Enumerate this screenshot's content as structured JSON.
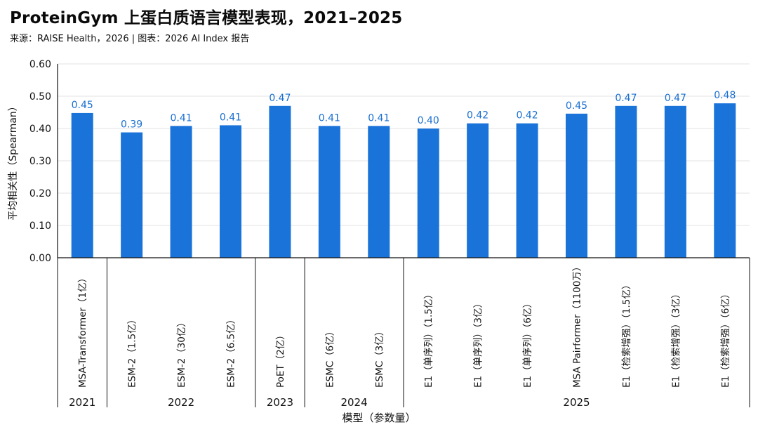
{
  "header": {
    "title": "ProteinGym 上蛋白质语言模型表现，2021–2025",
    "subtitle": "来源：RAISE Health，2026 | 图表：2026 AI Index 报告"
  },
  "chart_data": {
    "type": "bar",
    "title": "ProteinGym 上蛋白质语言模型表现，2021–2025",
    "xlabel": "模型（参数量）",
    "ylabel": "平均相关性（Spearman）",
    "ylim": [
      0,
      0.6
    ],
    "yticks": [
      "0.00",
      "0.10",
      "0.20",
      "0.30",
      "0.40",
      "0.50",
      "0.60"
    ],
    "grid": true,
    "bar_color": "#1a73d9",
    "label_color": "#1a6fd1",
    "categories": [
      "MSA-Transformer（1亿）",
      "ESM-2（1.5亿）",
      "ESM-2（30亿）",
      "ESM-2（6.5亿）",
      "PoET（2亿）",
      "ESMC（6亿）",
      "ESMC（3亿）",
      "E1（单序列）（1.5亿）",
      "E1（单序列）（3亿）",
      "E1（单序列）（6亿）",
      "MSA Pairformer（1100万）",
      "E1（检索增强）（1.5亿）",
      "E1（检索增强）（3亿）",
      "E1（检索增强）（6亿）"
    ],
    "values": [
      0.448,
      0.388,
      0.408,
      0.41,
      0.47,
      0.408,
      0.408,
      0.4,
      0.416,
      0.416,
      0.446,
      0.47,
      0.47,
      0.478
    ],
    "value_labels": [
      "0.45",
      "0.39",
      "0.41",
      "0.41",
      "0.47",
      "0.41",
      "0.41",
      "0.40",
      "0.42",
      "0.42",
      "0.45",
      "0.47",
      "0.47",
      "0.48"
    ],
    "year_groups": [
      {
        "label": "2021",
        "start": 0,
        "end": 0
      },
      {
        "label": "2022",
        "start": 1,
        "end": 3
      },
      {
        "label": "2023",
        "start": 4,
        "end": 4
      },
      {
        "label": "2024",
        "start": 5,
        "end": 6
      },
      {
        "label": "2025",
        "start": 7,
        "end": 13
      }
    ]
  }
}
